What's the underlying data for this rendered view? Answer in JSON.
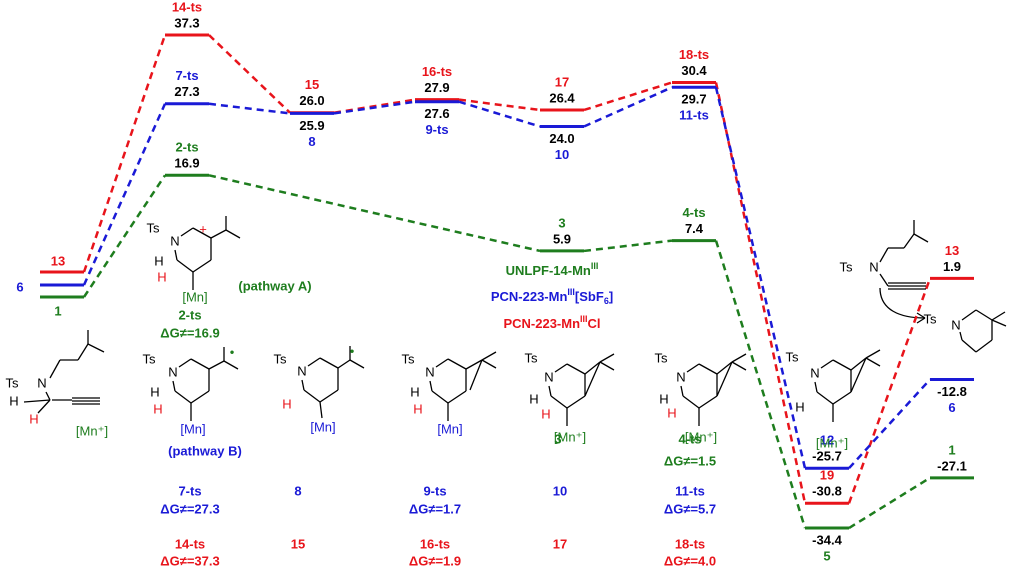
{
  "diagram": {
    "series": [
      {
        "color": "#e8141b",
        "levels": [
          {
            "label": "13"
          },
          {
            "label": "14-ts",
            "energy": 37.3
          },
          {
            "label": "15",
            "energy": {
              "value": 26,
              "label": "26.0"
            }
          },
          {
            "label": "16-ts",
            "energy": 27.9
          },
          {
            "label": "17",
            "energy": 26.4
          },
          {
            "label": "18-ts",
            "energy": 30.4
          },
          {
            "label": "19",
            "energy": -30.8
          },
          {
            "label": "13",
            "energy": 1.9
          }
        ]
      },
      {
        "color": "#1a1ad6",
        "levels": [
          {
            "label": "6"
          },
          {
            "label": "7-ts",
            "energy": 27.3
          },
          {
            "label": "8",
            "energy": 25.9
          },
          {
            "label": "9-ts",
            "energy": 27.6
          },
          {
            "label": "10",
            "energy": {
              "value": 24,
              "label": "24.0"
            }
          },
          {
            "label": "11-ts",
            "energy": 29.7
          },
          {
            "label": "12",
            "energy": -25.7
          },
          {
            "label": "6",
            "energy": -12.8
          }
        ]
      },
      {
        "color": "#1e7d1e",
        "levels": [
          {
            "label": "1"
          },
          {
            "label": "2-ts",
            "energy": 16.9
          },
          {
            "label": "3",
            "energy": 5.9
          },
          {
            "label": "4-ts",
            "energy": 7.4
          },
          {
            "label": "5",
            "energy": -34.4
          },
          {
            "label": "1",
            "energy": -27.1
          }
        ]
      }
    ],
    "legend": [
      {
        "text": "UNLPF-14-Mn",
        "sup": "III",
        "color": "#1e7d1e"
      },
      {
        "text": "PCN-223-Mn",
        "sup": "III",
        "text2": "[SbF",
        "sub": "6",
        "text3": "]",
        "color": "#1a1ad6"
      },
      {
        "text": "PCN-223-Mn",
        "sup": "III",
        "text2": "Cl",
        "color": "#e8141b"
      }
    ],
    "annotations": [
      {
        "text": "(pathway A)",
        "color": "#1e7d1e"
      },
      {
        "text": "2-ts",
        "color": "#1e7d1e"
      },
      {
        "text": "ΔG≠=16.9",
        "color": "#1e7d1e"
      },
      {
        "text": "(pathway B)",
        "color": "#1a1ad6"
      },
      {
        "text": "3",
        "color": "#1e7d1e"
      },
      {
        "text": "4-ts",
        "color": "#1e7d1e"
      },
      {
        "text": "ΔG≠=1.5",
        "color": "#1e7d1e"
      },
      {
        "text": "7-ts",
        "color": "#1a1ad6"
      },
      {
        "text": "ΔG≠=27.3",
        "color": "#1a1ad6"
      },
      {
        "text": "8",
        "color": "#1a1ad6"
      },
      {
        "text": "9-ts",
        "color": "#1a1ad6"
      },
      {
        "text": "ΔG≠=1.7",
        "color": "#1a1ad6"
      },
      {
        "text": "10",
        "color": "#1a1ad6"
      },
      {
        "text": "11-ts",
        "color": "#1a1ad6"
      },
      {
        "text": "ΔG≠=5.7",
        "color": "#1a1ad6"
      },
      {
        "text": "14-ts",
        "color": "#e8141b"
      },
      {
        "text": "ΔG≠=37.3",
        "color": "#e8141b"
      },
      {
        "text": "15",
        "color": "#e8141b"
      },
      {
        "text": "16-ts",
        "color": "#e8141b"
      },
      {
        "text": "ΔG≠=1.9",
        "color": "#e8141b"
      },
      {
        "text": "17",
        "color": "#e8141b"
      },
      {
        "text": "18-ts",
        "color": "#e8141b"
      },
      {
        "text": "ΔG≠=4.0",
        "color": "#e8141b"
      }
    ],
    "structures": [
      {
        "atoms": [
          "Ts",
          "N",
          "H",
          "H",
          "[Mn⁺]"
        ]
      },
      {
        "atoms": [
          "Ts",
          "N",
          "H",
          "H",
          "[Mn]",
          "+"
        ]
      },
      {
        "atoms": [
          "Ts",
          "N",
          "H",
          "H",
          "[Mn]",
          "•"
        ]
      },
      {
        "atoms": [
          "Ts",
          "N",
          "H",
          "[Mn]",
          "•"
        ]
      },
      {
        "atoms": [
          "Ts",
          "N",
          "H",
          "H",
          "[Mn]"
        ]
      },
      {
        "atoms": [
          "Ts",
          "N",
          "H",
          "H",
          "[Mn⁺]"
        ]
      },
      {
        "atoms": [
          "Ts",
          "N",
          "H",
          "H",
          "[Mn⁺]"
        ]
      },
      {
        "atoms": [
          "Ts",
          "N",
          "H",
          "[Mn⁺]"
        ]
      },
      {
        "atoms": [
          "Ts",
          "N"
        ]
      },
      {
        "atoms": [
          "Ts",
          "N"
        ]
      }
    ]
  }
}
